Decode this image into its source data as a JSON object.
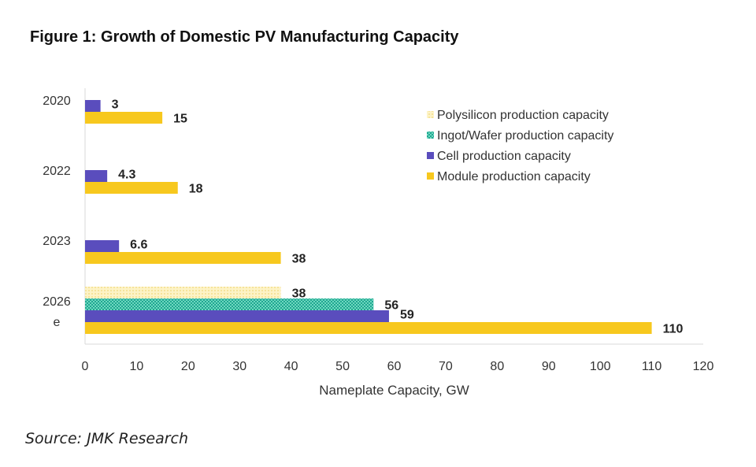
{
  "chart_data": {
    "type": "bar",
    "orientation": "horizontal",
    "title": "Figure 1: Growth of Domestic PV Manufacturing Capacity",
    "xlabel": "Nameplate Capacity, GW",
    "ylabel": "",
    "xlim": [
      0,
      120
    ],
    "x_ticks": [
      "0",
      "10",
      "20",
      "30",
      "40",
      "50",
      "60",
      "70",
      "80",
      "90",
      "100",
      "110",
      "120"
    ],
    "categories": [
      [
        "2020"
      ],
      [
        "2022"
      ],
      [
        "2023"
      ],
      [
        "2026",
        "e"
      ]
    ],
    "series": [
      {
        "name": "Polysilicon production capacity",
        "values": [
          null,
          null,
          null,
          38
        ],
        "color": "#fbeaa8",
        "pattern": "light-dots"
      },
      {
        "name": "Ingot/Wafer production capacity",
        "values": [
          null,
          null,
          null,
          56
        ],
        "color": "#2bb39a",
        "pattern": "dense-dots"
      },
      {
        "name": "Cell production capacity",
        "values": [
          3,
          4.3,
          6.6,
          59
        ],
        "color": "#5a4dbd",
        "pattern": "solid"
      },
      {
        "name": "Module production capacity",
        "values": [
          15,
          18,
          38,
          110
        ],
        "color": "#f7c81e",
        "pattern": "solid"
      }
    ],
    "data_labels": [
      [
        "",
        "",
        "",
        "38"
      ],
      [
        "",
        "",
        "",
        "56"
      ],
      [
        "3",
        "4.3",
        "6.6",
        "59"
      ],
      [
        "15",
        "18",
        "38",
        "110"
      ]
    ],
    "grid": false,
    "legend_position": "right"
  },
  "source": "Source: JMK Research"
}
